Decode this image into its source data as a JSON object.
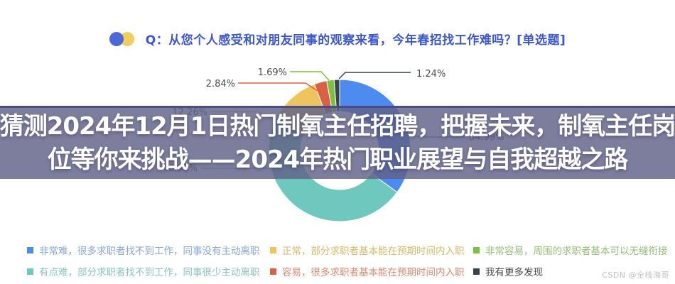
{
  "header": {
    "question": "Q：从您个人感受和对朋友同事的观察来看，今年春招找工作难吗？[单选题]",
    "title_color": "#3d57ce",
    "icon_blue": "#4a68d9",
    "icon_yellow": "#f1cd5f"
  },
  "overlay": {
    "line1": "猜测2024年12月1日热门制氧主任招聘，把握未来，制氧主任岗",
    "line2": "位等你来挑战——2024年热门职业展望与自我超越之路"
  },
  "chart_data": {
    "type": "pie",
    "donut": true,
    "title": "从您个人感受和对朋友同事的观察来看，今年春招找工作难吗？[单选题]",
    "start_angle": "12-o-clock, clockwise",
    "legend_position": "bottom, 3 columns x 2 rows",
    "series": [
      {
        "label": "非常难，很多求职者找不到工作，同事没有主动离职",
        "value": 34.99,
        "pct": "34.99%",
        "color": "#4e8bf0",
        "text_color": "#87a6d6"
      },
      {
        "label": "有点难，部分求职者找不到工作，同事很少主动离职",
        "value": 46.98,
        "pct": "46.98%",
        "color": "#6ec8be",
        "text_color": "#8ac4bf"
      },
      {
        "label": "正常，部分求职者基本能在预期时间内入职",
        "value": 12.26,
        "pct": "12.26%",
        "color": "#eec45e",
        "text_color": "#d8b86a"
      },
      {
        "label": "容易，很多求职者基本能在预期时间内入职",
        "value": 2.84,
        "pct": "2.84%",
        "color": "#da5f45",
        "text_color": "#d98a6e"
      },
      {
        "label": "非常容易，周围的求职者基本可以无缝衔接",
        "value": 1.69,
        "pct": "1.69%",
        "color": "#7dc142",
        "text_color": "#95bd77"
      },
      {
        "label": "我有更多发现",
        "value": 1.24,
        "pct": "1.24%",
        "color": "#39434a",
        "text_color": "#4b4b4b"
      }
    ]
  },
  "watermark": {
    "text": "CSDN @全栈海哥"
  }
}
